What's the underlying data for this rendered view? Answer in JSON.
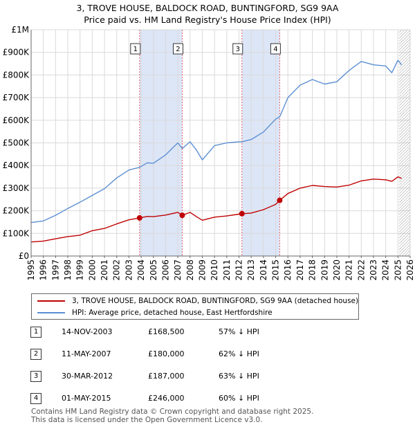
{
  "title": {
    "line1": "3, TROVE HOUSE, BALDOCK ROAD, BUNTINGFORD, SG9 9AA",
    "line2": "Price paid vs. HM Land Registry's House Price Index (HPI)"
  },
  "legend": {
    "property_label": "3, TROVE HOUSE, BALDOCK ROAD, BUNTINGFORD, SG9 9AA (detached house)",
    "hpi_label": "HPI: Average price, detached house, East Hertfordshire"
  },
  "colors": {
    "property": "#c00000",
    "hpi": "#5b8fd4",
    "shade": "#dde6f7",
    "grid": "#d9d9d9",
    "marker_line": "#e06060"
  },
  "sales": [
    {
      "num": "1",
      "date": "14-NOV-2003",
      "price": "£168,500",
      "hpi": "57% ↓ HPI"
    },
    {
      "num": "2",
      "date": "11-MAY-2007",
      "price": "£180,000",
      "hpi": "62% ↓ HPI"
    },
    {
      "num": "3",
      "date": "30-MAR-2012",
      "price": "£187,000",
      "hpi": "63% ↓ HPI"
    },
    {
      "num": "4",
      "date": "01-MAY-2015",
      "price": "£246,000",
      "hpi": "60% ↓ HPI"
    }
  ],
  "footer": {
    "line1": "Contains HM Land Registry data © Crown copyright and database right 2025.",
    "line2": "This data is licensed under the Open Government Licence v3.0."
  },
  "chart_data": {
    "type": "line",
    "title": "3, TROVE HOUSE, BALDOCK ROAD, BUNTINGFORD, SG9 9AA — Price paid vs. HM Land Registry's House Price Index (HPI)",
    "xlabel": "",
    "ylabel": "",
    "xlim": [
      1995,
      2026
    ],
    "ylim": [
      0,
      1000000
    ],
    "x_ticks": [
      "1995",
      "1996",
      "1997",
      "1998",
      "1999",
      "2000",
      "2001",
      "2002",
      "2003",
      "2004",
      "2005",
      "2006",
      "2007",
      "2008",
      "2009",
      "2010",
      "2011",
      "2012",
      "2013",
      "2014",
      "2015",
      "2016",
      "2017",
      "2018",
      "2019",
      "2020",
      "2021",
      "2022",
      "2023",
      "2024",
      "2025",
      "2026"
    ],
    "y_ticks": [
      {
        "value": 0,
        "label": "£0"
      },
      {
        "value": 100000,
        "label": "£100K"
      },
      {
        "value": 200000,
        "label": "£200K"
      },
      {
        "value": 300000,
        "label": "£300K"
      },
      {
        "value": 400000,
        "label": "£400K"
      },
      {
        "value": 500000,
        "label": "£500K"
      },
      {
        "value": 600000,
        "label": "£600K"
      },
      {
        "value": 700000,
        "label": "£700K"
      },
      {
        "value": 800000,
        "label": "£800K"
      },
      {
        "value": 900000,
        "label": "£900K"
      },
      {
        "value": 1000000,
        "label": "£1M"
      }
    ],
    "grid": true,
    "shaded_ranges": [
      [
        2003.87,
        2007.36
      ],
      [
        2012.24,
        2015.33
      ]
    ],
    "future_hatch_from": 2025.1,
    "series": [
      {
        "name": "3, TROVE HOUSE, BALDOCK ROAD, BUNTINGFORD, SG9 9AA (detached house)",
        "color": "#c00000",
        "x": [
          1995,
          1996,
          1997,
          1998,
          1999,
          2000,
          2001,
          2002,
          2003,
          2003.87,
          2004.5,
          2005,
          2006,
          2007,
          2007.36,
          2008,
          2008.5,
          2009,
          2010,
          2011,
          2012,
          2012.24,
          2013,
          2014,
          2015,
          2015.33,
          2016,
          2017,
          2018,
          2019,
          2020,
          2021,
          2022,
          2023,
          2024,
          2024.5,
          2025,
          2025.3
        ],
        "values": [
          62000,
          66000,
          76000,
          86000,
          92000,
          112000,
          122000,
          142000,
          160000,
          168500,
          175000,
          174000,
          181000,
          193000,
          180000,
          193000,
          175000,
          158000,
          172000,
          177000,
          185000,
          187000,
          190000,
          205000,
          228000,
          246000,
          276000,
          300000,
          312000,
          307000,
          305000,
          313000,
          332000,
          340000,
          337000,
          330000,
          350000,
          343000
        ]
      },
      {
        "name": "HPI: Average price, detached house, East Hertfordshire",
        "color": "#5b8fd4",
        "x": [
          1995,
          1996,
          1997,
          1998,
          1999,
          2000,
          2001,
          2002,
          2003,
          2003.87,
          2004.5,
          2005,
          2006,
          2007,
          2007.36,
          2008,
          2008.5,
          2009,
          2010,
          2011,
          2012,
          2012.24,
          2013,
          2014,
          2015,
          2015.33,
          2016,
          2017,
          2018,
          2019,
          2020,
          2021,
          2022,
          2023,
          2024,
          2024.5,
          2025,
          2025.3
        ],
        "values": [
          148000,
          155000,
          180000,
          210000,
          238000,
          268000,
          298000,
          345000,
          380000,
          392000,
          412000,
          410000,
          447000,
          500000,
          475000,
          505000,
          470000,
          425000,
          488000,
          500000,
          505000,
          505000,
          515000,
          548000,
          605000,
          615000,
          700000,
          755000,
          780000,
          760000,
          770000,
          820000,
          860000,
          845000,
          840000,
          810000,
          865000,
          845000
        ]
      }
    ],
    "sale_markers": [
      {
        "label": "1",
        "x": 2003.87,
        "value": 168500
      },
      {
        "label": "2",
        "x": 2007.36,
        "value": 180000
      },
      {
        "label": "3",
        "x": 2012.24,
        "value": 187000
      },
      {
        "label": "4",
        "x": 2015.33,
        "value": 246000
      }
    ]
  }
}
